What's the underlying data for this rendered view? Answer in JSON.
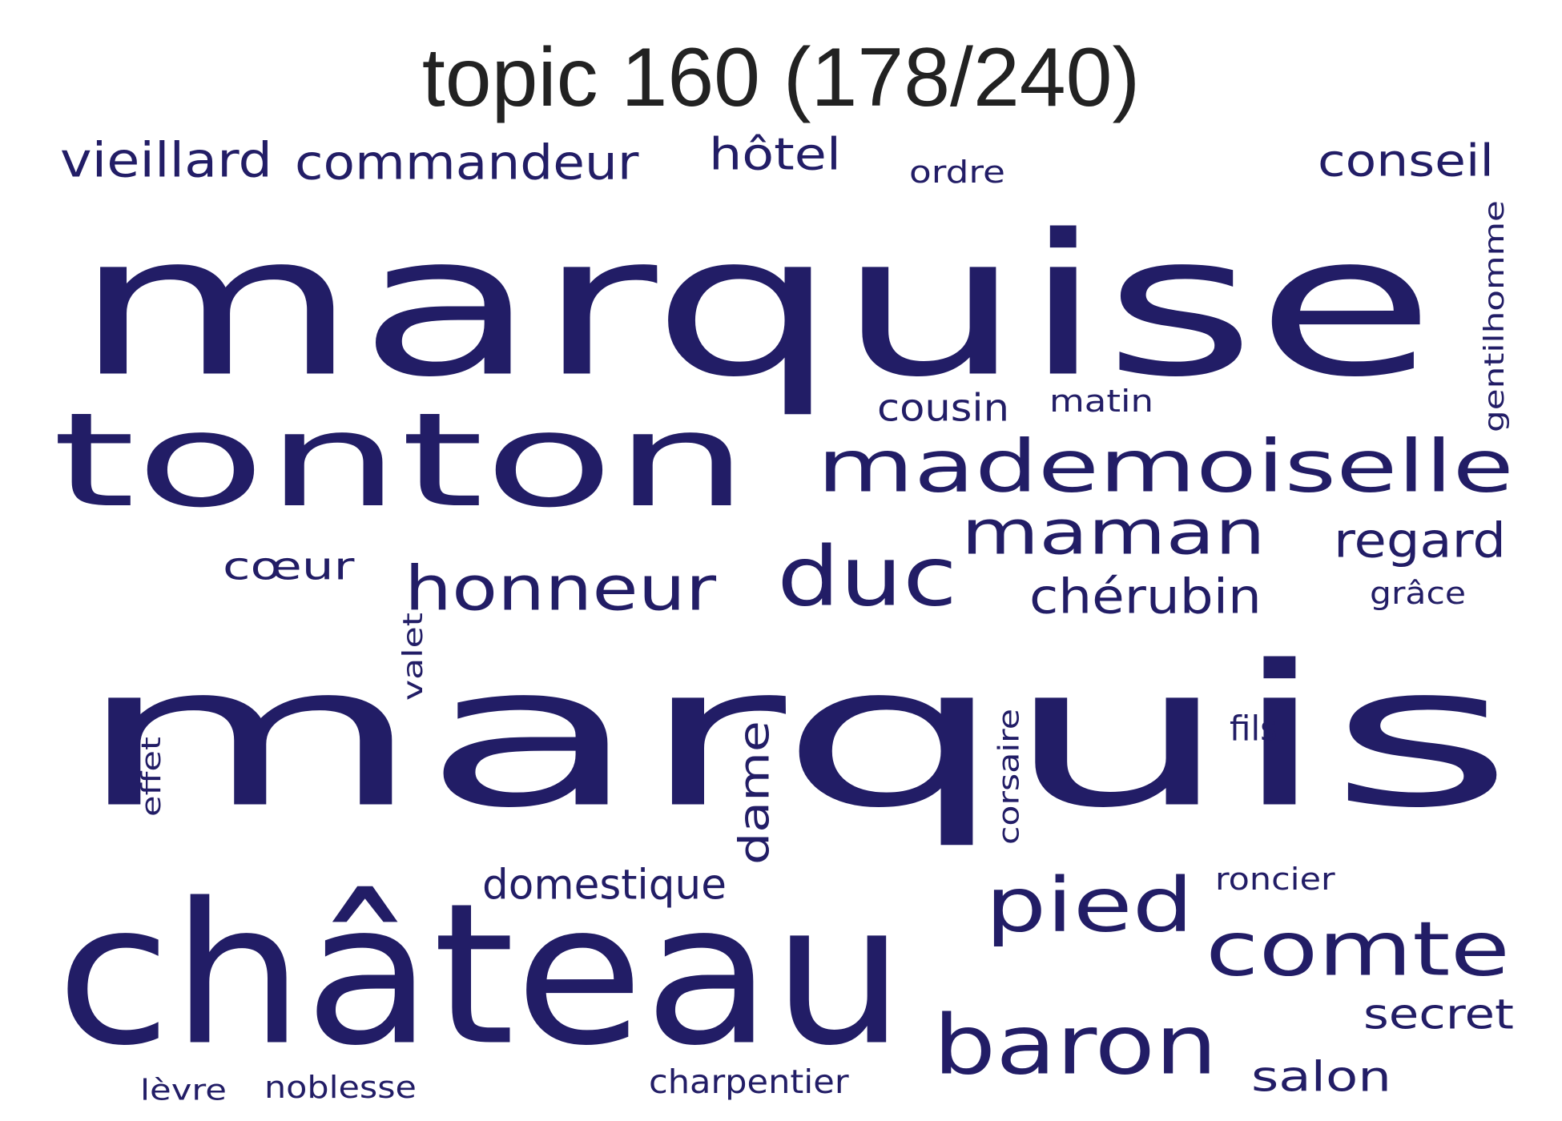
{
  "figure": {
    "title": "topic 160 (178/240)",
    "title_color": "#222222",
    "word_color": "#221d66"
  },
  "words": [
    {
      "id": "marquis",
      "text": "marquis",
      "orientation": "horizontal"
    },
    {
      "id": "marquise",
      "text": "marquise",
      "orientation": "horizontal"
    },
    {
      "id": "chateau",
      "text": "château",
      "orientation": "horizontal"
    },
    {
      "id": "tonton",
      "text": "tonton",
      "orientation": "horizontal"
    },
    {
      "id": "mademoiselle",
      "text": "mademoiselle",
      "orientation": "horizontal"
    },
    {
      "id": "baron",
      "text": "baron",
      "orientation": "horizontal"
    },
    {
      "id": "duc",
      "text": "duc",
      "orientation": "horizontal"
    },
    {
      "id": "pied",
      "text": "pied",
      "orientation": "horizontal"
    },
    {
      "id": "comte",
      "text": "comte",
      "orientation": "horizontal"
    },
    {
      "id": "maman",
      "text": "maman",
      "orientation": "horizontal"
    },
    {
      "id": "honneur",
      "text": "honneur",
      "orientation": "horizontal"
    },
    {
      "id": "commandeur",
      "text": "commandeur",
      "orientation": "horizontal"
    },
    {
      "id": "vieillard",
      "text": "vieillard",
      "orientation": "horizontal"
    },
    {
      "id": "hotel",
      "text": "hôtel",
      "orientation": "horizontal"
    },
    {
      "id": "conseil",
      "text": "conseil",
      "orientation": "horizontal"
    },
    {
      "id": "regard",
      "text": "regard",
      "orientation": "horizontal"
    },
    {
      "id": "cherubin",
      "text": "chérubin",
      "orientation": "horizontal"
    },
    {
      "id": "dame",
      "text": "dame",
      "orientation": "vertical"
    },
    {
      "id": "secret",
      "text": "secret",
      "orientation": "horizontal"
    },
    {
      "id": "salon",
      "text": "salon",
      "orientation": "horizontal"
    },
    {
      "id": "domestique",
      "text": "domestique",
      "orientation": "horizontal"
    },
    {
      "id": "coeur",
      "text": "cœur",
      "orientation": "horizontal"
    },
    {
      "id": "cousin",
      "text": "cousin",
      "orientation": "horizontal"
    },
    {
      "id": "gentilhomme",
      "text": "gentilhomme",
      "orientation": "vertical"
    },
    {
      "id": "corsaire",
      "text": "corsaire",
      "orientation": "vertical"
    },
    {
      "id": "valet",
      "text": "valet",
      "orientation": "vertical"
    },
    {
      "id": "effet",
      "text": "effet",
      "orientation": "vertical"
    },
    {
      "id": "charpentier",
      "text": "charpentier",
      "orientation": "horizontal"
    },
    {
      "id": "noblesse",
      "text": "noblesse",
      "orientation": "horizontal"
    },
    {
      "id": "roncier",
      "text": "roncier",
      "orientation": "horizontal"
    },
    {
      "id": "fils",
      "text": "fils",
      "orientation": "horizontal"
    },
    {
      "id": "matin",
      "text": "matin",
      "orientation": "horizontal"
    },
    {
      "id": "ordre",
      "text": "ordre",
      "orientation": "horizontal"
    },
    {
      "id": "grace",
      "text": "grâce",
      "orientation": "horizontal"
    },
    {
      "id": "levre",
      "text": "lèvre",
      "orientation": "horizontal"
    }
  ]
}
